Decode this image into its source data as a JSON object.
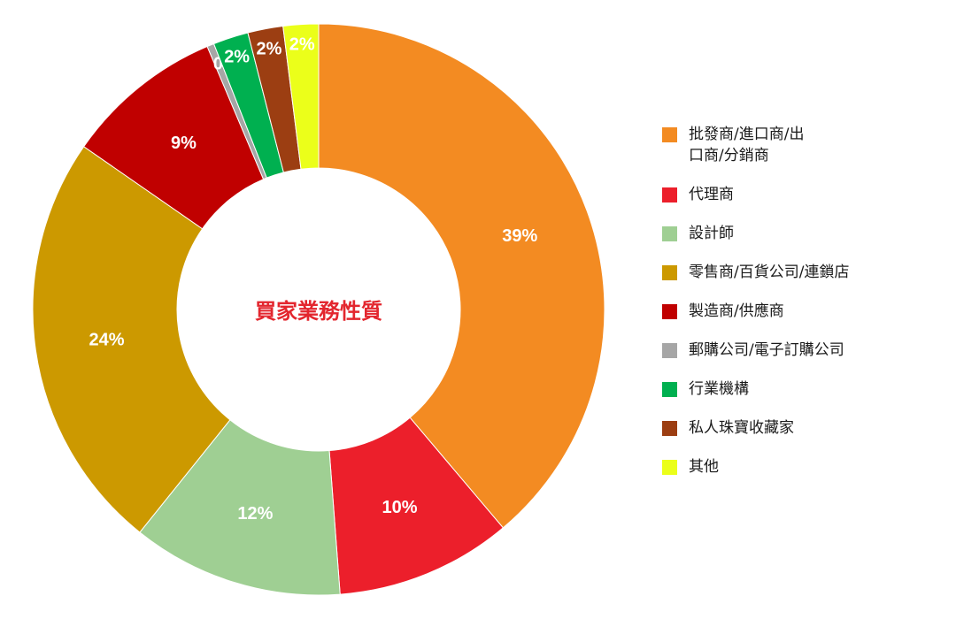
{
  "chart_data": {
    "type": "donut",
    "title": "買家業務性質",
    "categories": [
      "批發商/進口商/出口商/分銷商",
      "代理商",
      "設計師",
      "零售商/百貨公司/連鎖店",
      "製造商/供應商",
      "郵購公司/電子訂購公司",
      "行業機構",
      "私人珠寶收藏家",
      "其他"
    ],
    "values": [
      39,
      10,
      12,
      24,
      9,
      0.4,
      2,
      2,
      2
    ],
    "value_labels": [
      "39%",
      "10%",
      "12%",
      "24%",
      "9%",
      "0",
      "2%",
      "2%",
      "2%"
    ],
    "colors": [
      "#f38b22",
      "#ec1f2b",
      "#9fcf93",
      "#cc9900",
      "#c00000",
      "#a6a6a6",
      "#00b050",
      "#9c3e12",
      "#ebff1a"
    ]
  }
}
